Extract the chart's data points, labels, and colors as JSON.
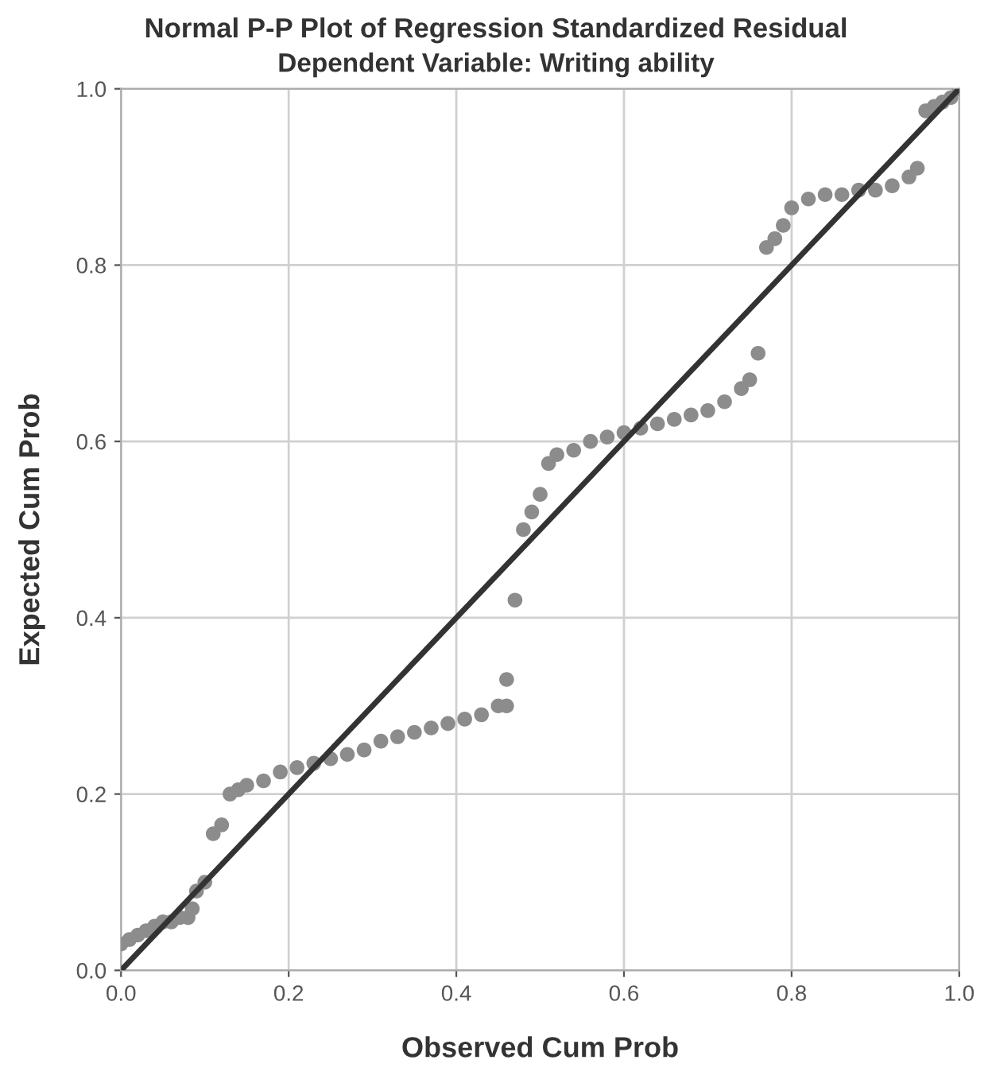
{
  "chart_data": {
    "type": "scatter",
    "title": "Normal P-P Plot of Regression Standardized Residual",
    "subtitle": "Dependent Variable: Writing ability",
    "xlabel": "Observed Cum Prob",
    "ylabel": "Expected Cum Prob",
    "xlim": [
      0,
      1
    ],
    "ylim": [
      0,
      1
    ],
    "xticks": [
      {
        "value": 0,
        "label": "0.0"
      },
      {
        "value": 0.2,
        "label": "0.2"
      },
      {
        "value": 0.4,
        "label": "0.4"
      },
      {
        "value": 0.6,
        "label": "0.6"
      },
      {
        "value": 0.8,
        "label": "0.8"
      },
      {
        "value": 1,
        "label": "1.0"
      }
    ],
    "yticks": [
      {
        "value": 0,
        "label": "0.0"
      },
      {
        "value": 0.2,
        "label": "0.2"
      },
      {
        "value": 0.4,
        "label": "0.4"
      },
      {
        "value": 0.6,
        "label": "0.6"
      },
      {
        "value": 0.8,
        "label": "0.8"
      },
      {
        "value": 1,
        "label": "1.0"
      }
    ],
    "grid": true,
    "series": [
      {
        "marker": "circle",
        "color": "#8c8c8c",
        "x": [
          0.0,
          0.01,
          0.02,
          0.03,
          0.04,
          0.05,
          0.06,
          0.07,
          0.08,
          0.085,
          0.09,
          0.1,
          0.11,
          0.12,
          0.13,
          0.14,
          0.15,
          0.17,
          0.19,
          0.21,
          0.23,
          0.25,
          0.27,
          0.29,
          0.31,
          0.33,
          0.35,
          0.37,
          0.39,
          0.41,
          0.43,
          0.45,
          0.46,
          0.46,
          0.47,
          0.48,
          0.49,
          0.5,
          0.51,
          0.52,
          0.54,
          0.56,
          0.58,
          0.6,
          0.62,
          0.64,
          0.66,
          0.68,
          0.7,
          0.72,
          0.74,
          0.75,
          0.76,
          0.77,
          0.78,
          0.79,
          0.8,
          0.82,
          0.84,
          0.86,
          0.88,
          0.9,
          0.92,
          0.94,
          0.95,
          0.96,
          0.97,
          0.98,
          0.99,
          1.0
        ],
        "values": [
          0.03,
          0.035,
          0.04,
          0.045,
          0.05,
          0.055,
          0.055,
          0.06,
          0.06,
          0.07,
          0.09,
          0.1,
          0.155,
          0.165,
          0.2,
          0.205,
          0.21,
          0.215,
          0.225,
          0.23,
          0.235,
          0.24,
          0.245,
          0.25,
          0.26,
          0.265,
          0.27,
          0.275,
          0.28,
          0.285,
          0.29,
          0.3,
          0.3,
          0.33,
          0.42,
          0.5,
          0.52,
          0.54,
          0.575,
          0.585,
          0.59,
          0.6,
          0.605,
          0.61,
          0.615,
          0.62,
          0.625,
          0.63,
          0.635,
          0.645,
          0.66,
          0.67,
          0.7,
          0.82,
          0.83,
          0.845,
          0.865,
          0.875,
          0.88,
          0.88,
          0.885,
          0.885,
          0.89,
          0.9,
          0.91,
          0.975,
          0.98,
          0.985,
          0.99,
          1.0
        ]
      },
      {
        "type": "line",
        "color": "#333333",
        "x": [
          0,
          1
        ],
        "values": [
          0,
          1
        ]
      }
    ]
  }
}
